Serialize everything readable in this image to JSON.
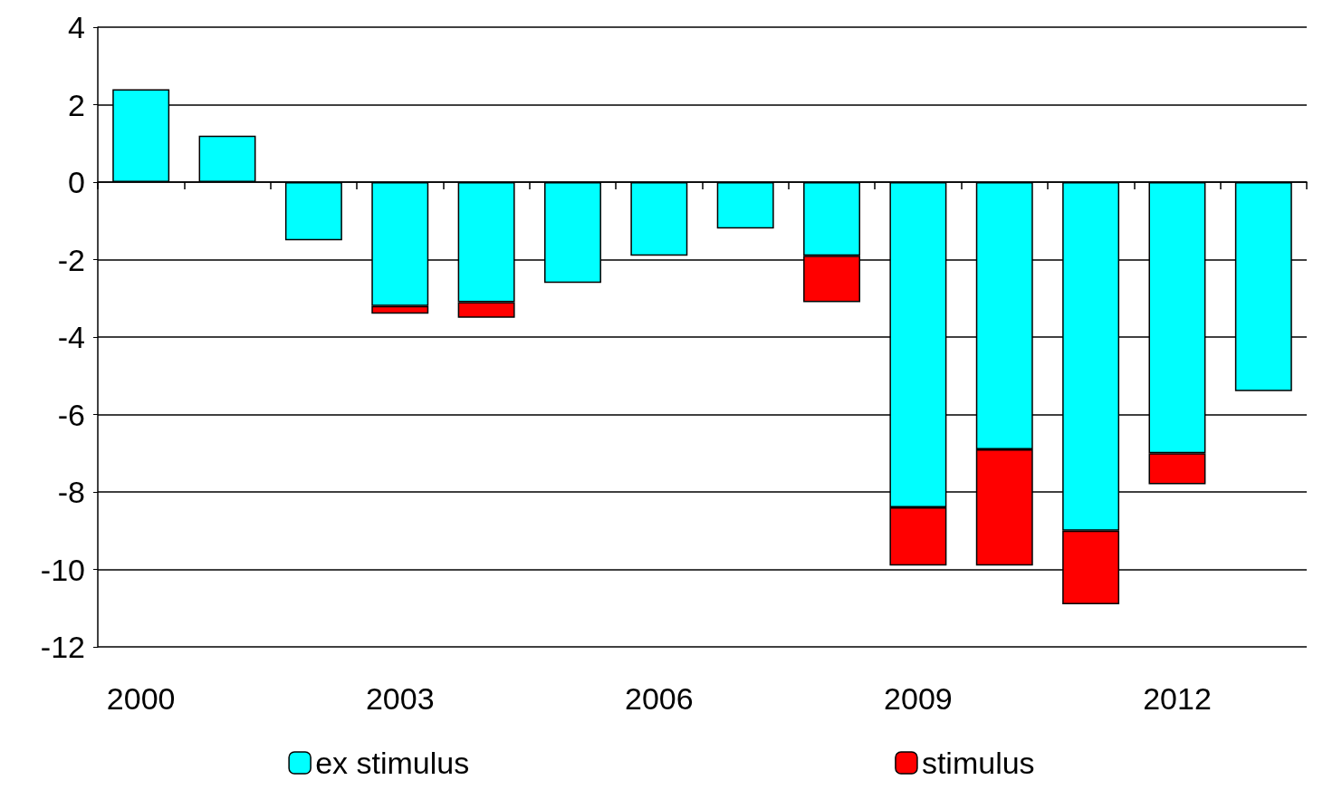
{
  "chart_data": {
    "type": "bar",
    "stacked": true,
    "categories": [
      "2000",
      null,
      null,
      "2003",
      null,
      null,
      "2006",
      null,
      null,
      "2009",
      null,
      null,
      "2012",
      null
    ],
    "series": [
      {
        "name": "ex stimulus",
        "color": "#00ffff",
        "values": [
          2.4,
          1.2,
          -1.5,
          -3.2,
          -3.1,
          -2.6,
          -1.9,
          -1.2,
          -1.9,
          -8.4,
          -6.9,
          -9.0,
          -7.0,
          -5.4
        ]
      },
      {
        "name": "stimulus",
        "color": "#ff0000",
        "values": [
          null,
          null,
          null,
          -0.2,
          -0.4,
          null,
          null,
          null,
          -1.2,
          -1.5,
          -3.0,
          -1.9,
          -0.8,
          null
        ]
      }
    ],
    "ylim": [
      -12,
      4
    ],
    "yticks": [
      -12,
      -10,
      -8,
      -6,
      -4,
      -2,
      0,
      2,
      4
    ],
    "grid": "y",
    "legend": "bottom"
  }
}
